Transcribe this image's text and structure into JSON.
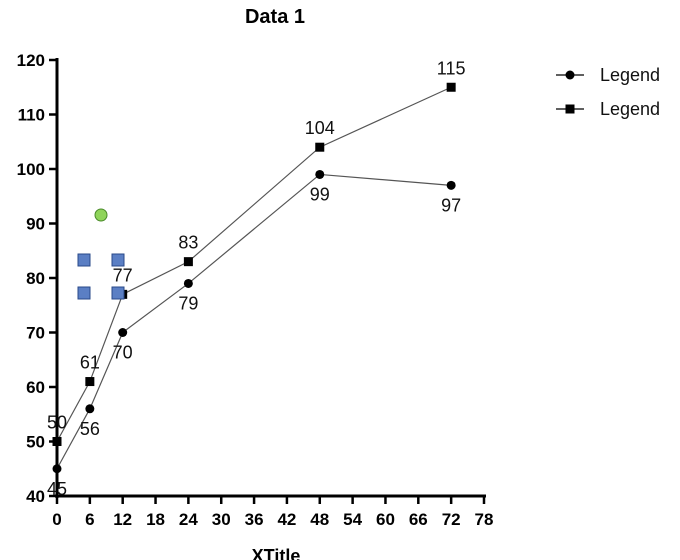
{
  "chart_data": {
    "type": "line",
    "title": "Data 1",
    "xlabel": "XTitle",
    "ylabel": "",
    "xlim": [
      0,
      78
    ],
    "ylim": [
      40,
      120
    ],
    "x_ticks": [
      0,
      6,
      12,
      18,
      24,
      30,
      36,
      42,
      48,
      54,
      60,
      66,
      72,
      78
    ],
    "y_ticks": [
      40,
      50,
      60,
      70,
      80,
      90,
      100,
      110,
      120
    ],
    "grid": false,
    "legend_position": "top-right",
    "series": [
      {
        "name": "Legend",
        "marker": "circle",
        "x": [
          0,
          6,
          12,
          24,
          48,
          72
        ],
        "values": [
          45,
          56,
          70,
          79,
          99,
          97
        ],
        "labels": [
          "45",
          "56",
          "70",
          "79",
          "99",
          "97"
        ]
      },
      {
        "name": "Legend",
        "marker": "square",
        "x": [
          0,
          6,
          12,
          24,
          48,
          72
        ],
        "values": [
          50,
          61,
          77,
          83,
          104,
          115
        ],
        "labels": [
          "50",
          "61",
          "77",
          "83",
          "104",
          "115"
        ]
      }
    ],
    "line_color": "#555555",
    "marker_color": "#000000"
  }
}
